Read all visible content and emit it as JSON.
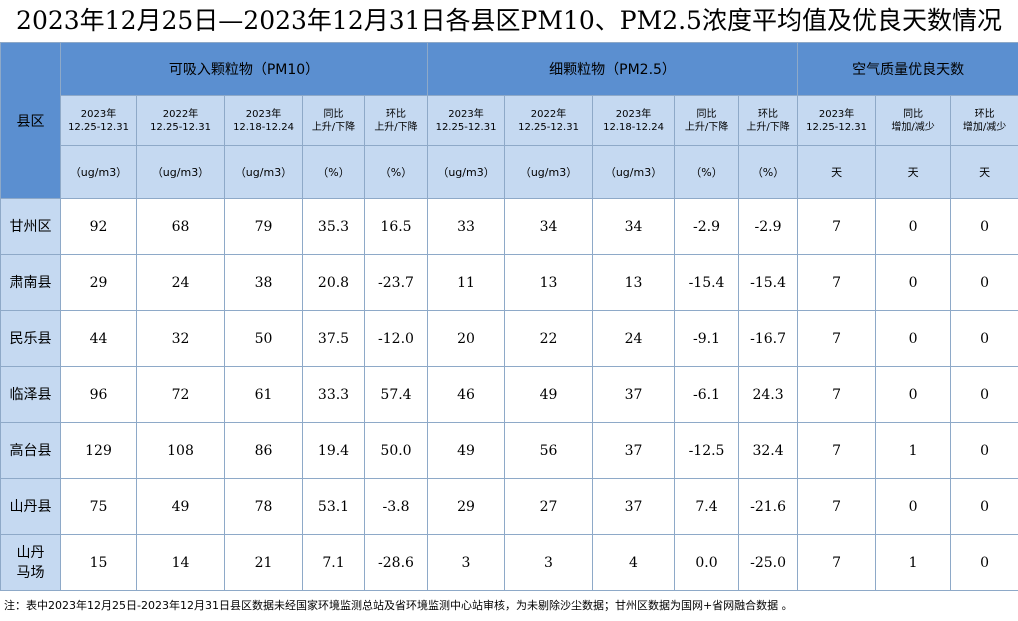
{
  "header": {
    "title": "2023年12月25日—2023年12月31日各县区PM10、PM2.5浓度平均值及优良天数情况"
  },
  "table": {
    "corner": "县区",
    "groups": [
      {
        "label": "可吸入颗粒物（PM10）",
        "span": 5
      },
      {
        "label": "细颗粒物（PM2.5）",
        "span": 5
      },
      {
        "label": "空气质量优良天数",
        "span": 3
      }
    ],
    "subheaders": [
      "2023年\n12.25-12.31",
      "2022年\n12.25-12.31",
      "2023年\n12.18-12.24",
      "同比\n上升/下降",
      "环比\n上升/下降",
      "2023年\n12.25-12.31",
      "2022年\n12.25-12.31",
      "2023年\n12.18-12.24",
      "同比\n上升/下降",
      "环比\n上升/下降",
      "2023年\n12.25-12.31",
      "同比\n增加/减少",
      "环比\n增加/减少"
    ],
    "units": [
      "（ug/m3）",
      "（ug/m3）",
      "（ug/m3）",
      "（%）",
      "（%）",
      "（ug/m3）",
      "（ug/m3）",
      "（ug/m3）",
      "（%）",
      "（%）",
      "天",
      "天",
      "天"
    ],
    "rows": [
      [
        "甘州区",
        "92",
        "68",
        "79",
        "35.3",
        "16.5",
        "33",
        "34",
        "34",
        "-2.9",
        "-2.9",
        "7",
        "0",
        "0"
      ],
      [
        "肃南县",
        "29",
        "24",
        "38",
        "20.8",
        "-23.7",
        "11",
        "13",
        "13",
        "-15.4",
        "-15.4",
        "7",
        "0",
        "0"
      ],
      [
        "民乐县",
        "44",
        "32",
        "50",
        "37.5",
        "-12.0",
        "20",
        "22",
        "24",
        "-9.1",
        "-16.7",
        "7",
        "0",
        "0"
      ],
      [
        "临泽县",
        "96",
        "72",
        "61",
        "33.3",
        "57.4",
        "46",
        "49",
        "37",
        "-6.1",
        "24.3",
        "7",
        "0",
        "0"
      ],
      [
        "高台县",
        "129",
        "108",
        "86",
        "19.4",
        "50.0",
        "49",
        "56",
        "37",
        "-12.5",
        "32.4",
        "7",
        "1",
        "0"
      ],
      [
        "山丹县",
        "75",
        "49",
        "78",
        "53.1",
        "-3.8",
        "29",
        "27",
        "37",
        "7.4",
        "-21.6",
        "7",
        "0",
        "0"
      ],
      [
        "山丹\n马场",
        "15",
        "14",
        "21",
        "7.1",
        "-28.6",
        "3",
        "3",
        "4",
        "0.0",
        "-25.0",
        "7",
        "1",
        "0"
      ]
    ]
  },
  "note": "注：表中2023年12月25日-2023年12月31日县区数据未经国家环境监测总站及省环境监测中心站审核，为未剔除沙尘数据；甘州区数据为国网+省网融合数据 。"
}
